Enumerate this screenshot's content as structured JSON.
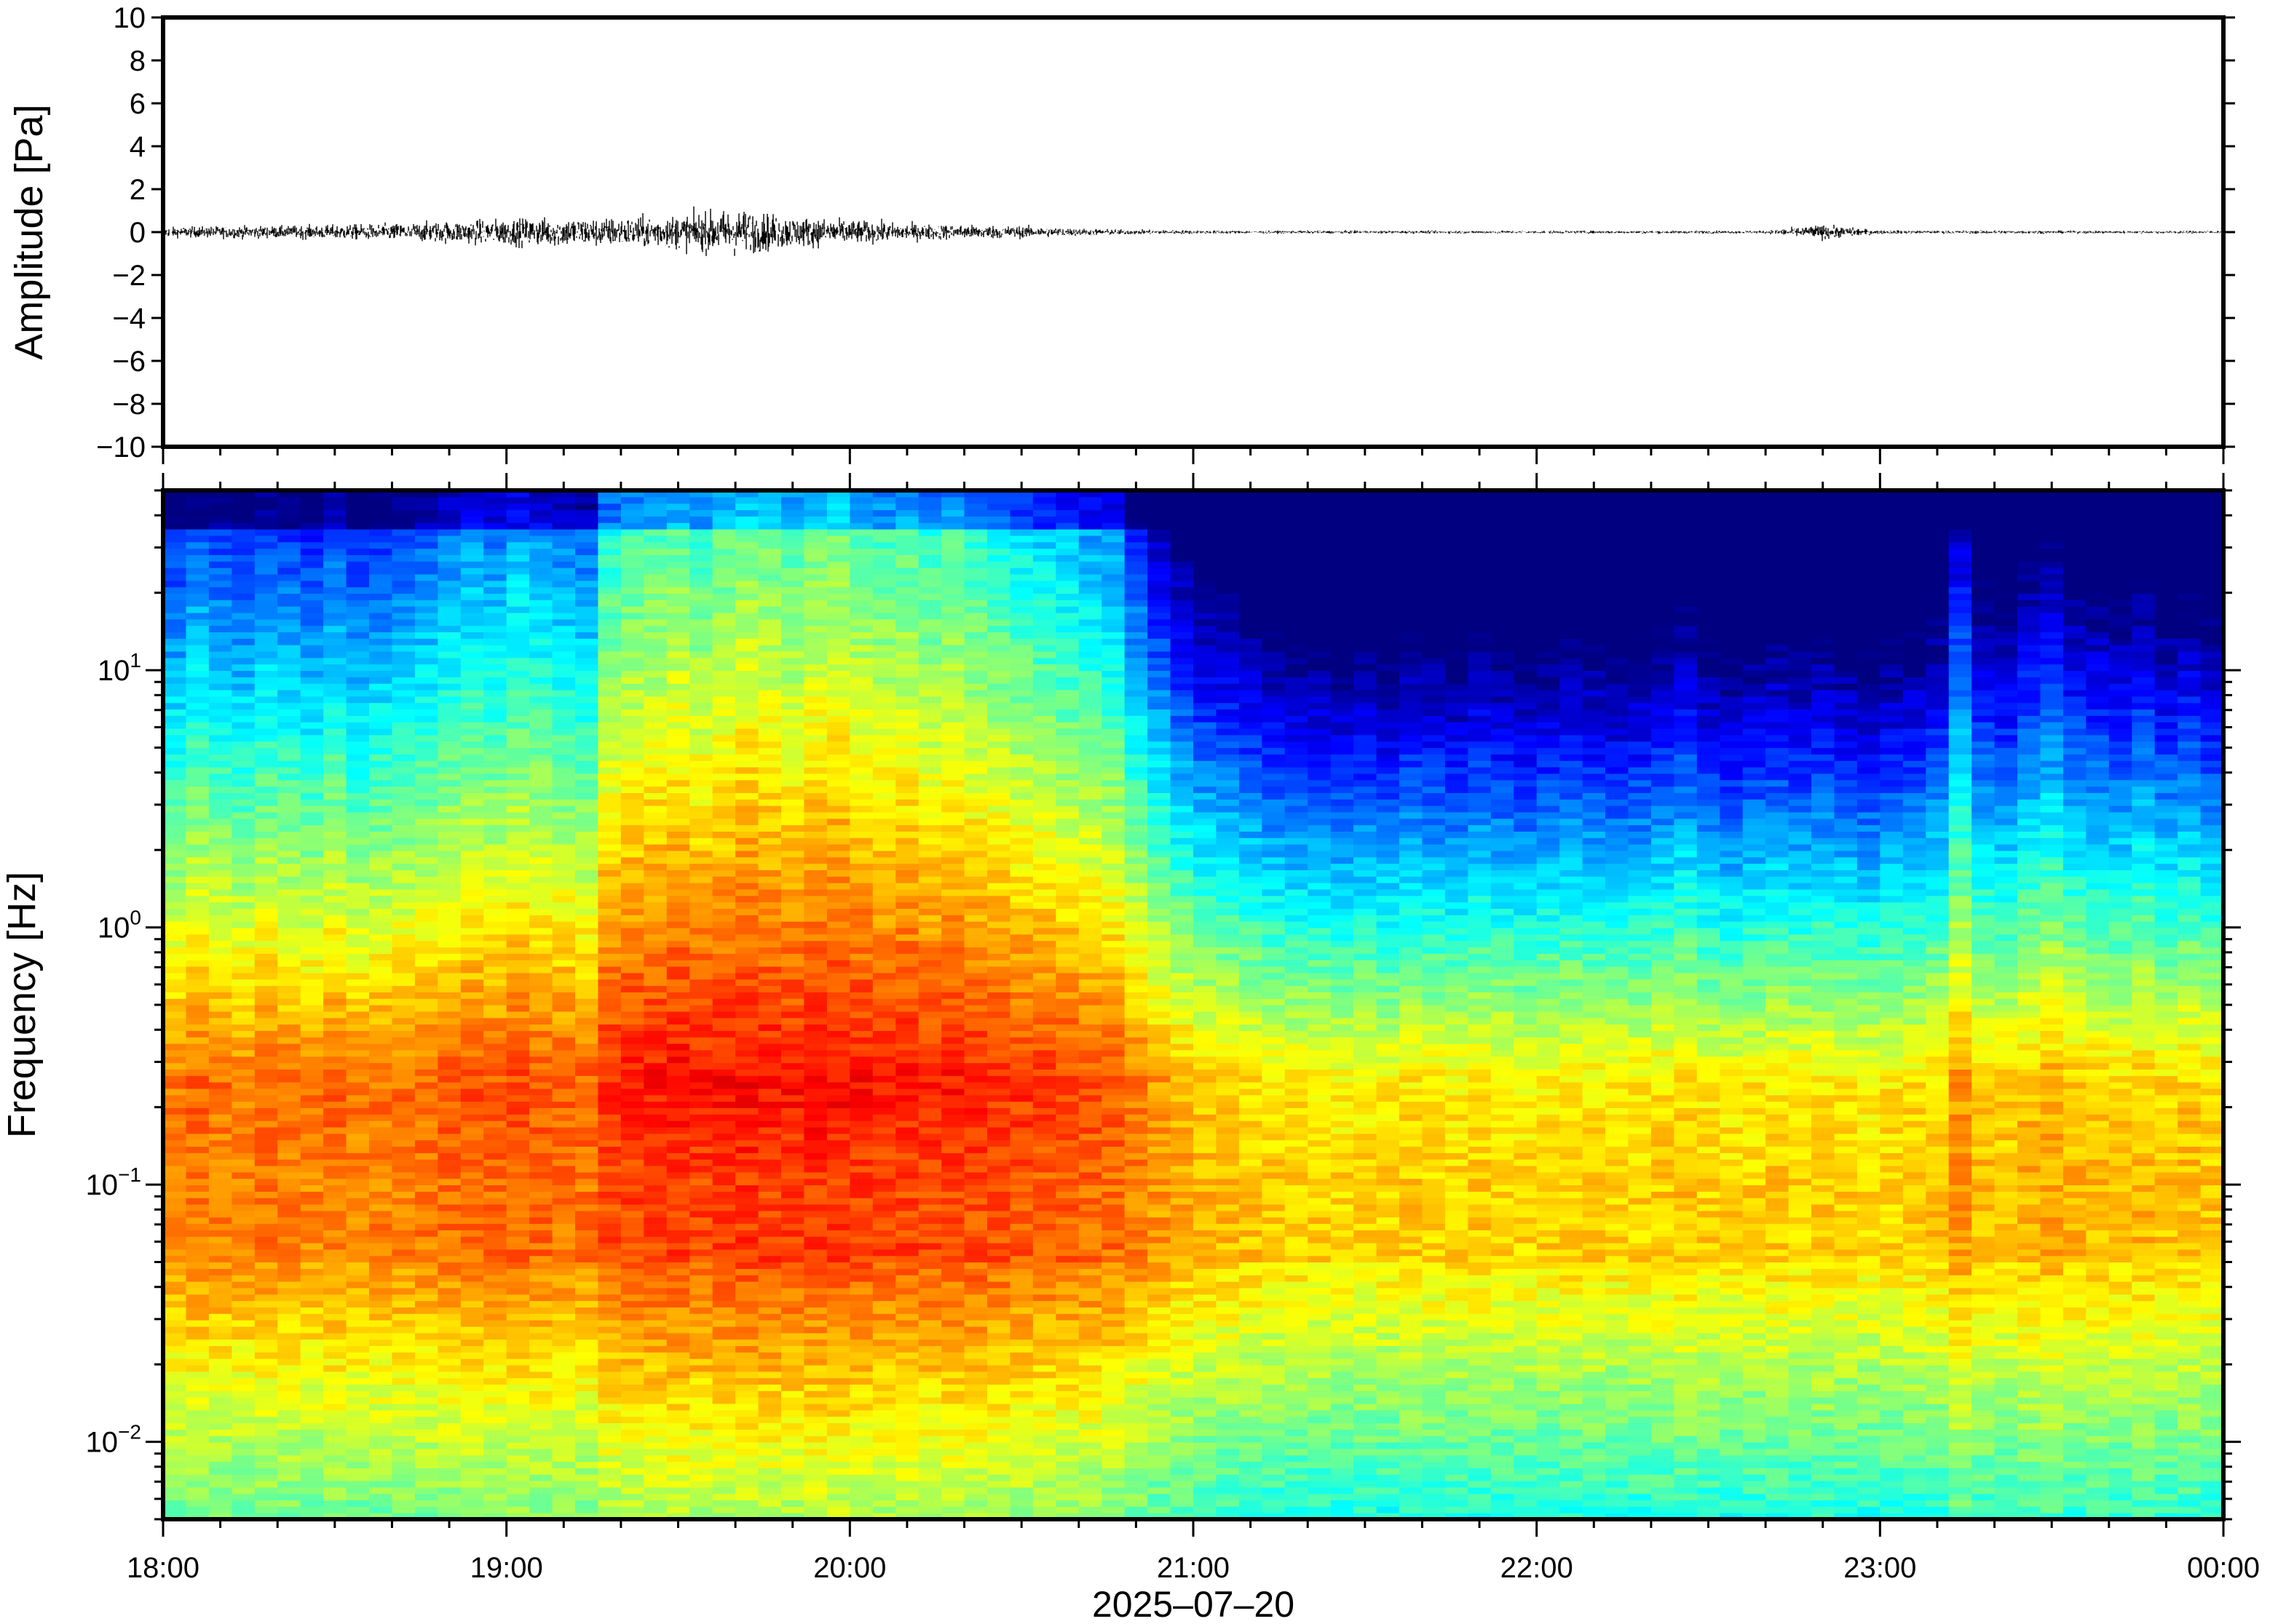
{
  "chart_data": [
    {
      "type": "line",
      "panel": "waveform",
      "ylabel": "Amplitude [Pa]",
      "ylim": [
        -10,
        10
      ],
      "yticks": [
        10,
        8,
        6,
        4,
        2,
        0,
        -2,
        -4,
        -6,
        -8,
        -10
      ],
      "ytick_labels": [
        "10",
        "8",
        "6",
        "4",
        "2",
        "0",
        "−2",
        "−4",
        "−6",
        "−8",
        "−10"
      ],
      "xlim": [
        "18:00",
        "00:00"
      ],
      "series": [
        {
          "color": "#000000",
          "envelope_note": "peak amplitude envelope (Pa) sampled every 10 minutes",
          "x": [
            "18:00",
            "18:10",
            "18:20",
            "18:30",
            "18:40",
            "18:50",
            "19:00",
            "19:10",
            "19:20",
            "19:30",
            "19:40",
            "19:50",
            "20:00",
            "20:10",
            "20:20",
            "20:30",
            "20:40",
            "20:50",
            "21:00",
            "21:10",
            "21:20",
            "21:30",
            "21:40",
            "21:50",
            "22:00",
            "22:10",
            "22:20",
            "22:30",
            "22:40",
            "22:50",
            "23:00",
            "23:10",
            "23:20",
            "23:30",
            "23:40",
            "23:50",
            "00:00"
          ],
          "values": [
            0.4,
            0.5,
            0.5,
            0.6,
            0.7,
            0.9,
            1.1,
            1.2,
            1.2,
            1.4,
            1.9,
            1.3,
            1.0,
            0.7,
            0.6,
            0.5,
            0.3,
            0.2,
            0.15,
            0.12,
            0.12,
            0.12,
            0.12,
            0.12,
            0.12,
            0.12,
            0.12,
            0.12,
            0.12,
            0.6,
            0.15,
            0.12,
            0.15,
            0.12,
            0.12,
            0.12,
            0.12
          ]
        }
      ]
    },
    {
      "type": "heatmap",
      "panel": "spectrogram",
      "ylabel": "Frequency [Hz]",
      "xlabel": "2025–07–20",
      "yscale": "log",
      "ylim": [
        0.005,
        50
      ],
      "yticks": [
        0.01,
        0.1,
        1,
        10
      ],
      "ytick_labels": [
        {
          "base": "10",
          "exp": "−2"
        },
        {
          "base": "10",
          "exp": "−1"
        },
        {
          "base": "10",
          "exp": "0"
        },
        {
          "base": "10",
          "exp": "1"
        }
      ],
      "x": [
        "18:00",
        "19:00",
        "20:00",
        "21:00",
        "22:00",
        "23:00",
        "00:00"
      ],
      "colormap": "jet",
      "power_note": "relative power 0 (dark blue) to 1 (red); one column per ~4 minutes, rows span log frequency",
      "column_activity": [
        0.7,
        0.75,
        0.72,
        0.7,
        0.74,
        0.72,
        0.7,
        0.75,
        0.7,
        0.72,
        0.73,
        0.75,
        0.78,
        0.8,
        0.78,
        0.82,
        0.8,
        0.78,
        0.76,
        0.92,
        0.95,
        0.96,
        0.98,
        0.95,
        0.97,
        1.0,
        0.98,
        0.96,
        0.99,
        1.0,
        0.97,
        0.95,
        0.96,
        0.93,
        0.95,
        0.92,
        0.9,
        0.88,
        0.86,
        0.84,
        0.82,
        0.8,
        0.7,
        0.62,
        0.55,
        0.5,
        0.48,
        0.45,
        0.42,
        0.4,
        0.4,
        0.38,
        0.4,
        0.38,
        0.42,
        0.4,
        0.38,
        0.42,
        0.4,
        0.38,
        0.4,
        0.42,
        0.4,
        0.38,
        0.4,
        0.42,
        0.45,
        0.4,
        0.38,
        0.4,
        0.42,
        0.4,
        0.42,
        0.4,
        0.38,
        0.4,
        0.42,
        0.45,
        0.62,
        0.48,
        0.46,
        0.52,
        0.56,
        0.5,
        0.48,
        0.46,
        0.5,
        0.45,
        0.48,
        0.44
      ]
    }
  ],
  "x_tick_labels": [
    "18:00",
    "19:00",
    "20:00",
    "21:00",
    "22:00",
    "23:00",
    "00:00"
  ],
  "date_label": "2025–07–20"
}
